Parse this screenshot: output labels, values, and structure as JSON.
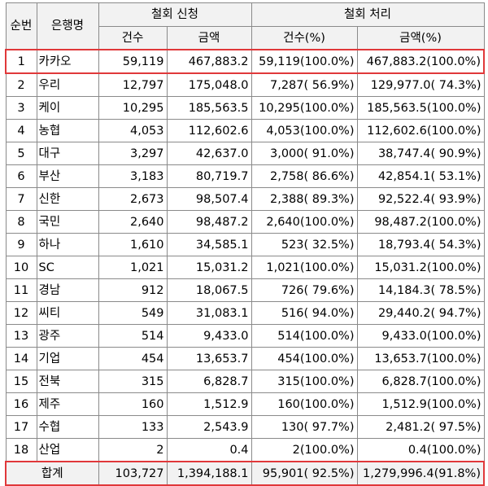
{
  "headers": {
    "rank": "순번",
    "bank": "은행명",
    "request_group": "철회 신청",
    "process_group": "철회 처리",
    "count": "건수",
    "amount": "금액",
    "count_pct": "건수(%)",
    "amount_pct": "금액(%)"
  },
  "rows": [
    {
      "rank": "1",
      "bank": "카카오",
      "req_count": "59,119",
      "req_amount": "467,883.2",
      "proc_count": "59,119(100.0%)",
      "proc_amount": "467,883.2(100.0%)"
    },
    {
      "rank": "2",
      "bank": "우리",
      "req_count": "12,797",
      "req_amount": "175,048.0",
      "proc_count": "7,287( 56.9%)",
      "proc_amount": "129,977.0( 74.3%)"
    },
    {
      "rank": "3",
      "bank": "케이",
      "req_count": "10,295",
      "req_amount": "185,563.5",
      "proc_count": "10,295(100.0%)",
      "proc_amount": "185,563.5(100.0%)"
    },
    {
      "rank": "4",
      "bank": "농협",
      "req_count": "4,053",
      "req_amount": "112,602.6",
      "proc_count": "4,053(100.0%)",
      "proc_amount": "112,602.6(100.0%)"
    },
    {
      "rank": "5",
      "bank": "대구",
      "req_count": "3,297",
      "req_amount": "42,637.0",
      "proc_count": "3,000( 91.0%)",
      "proc_amount": "38,747.4( 90.9%)"
    },
    {
      "rank": "6",
      "bank": "부산",
      "req_count": "3,183",
      "req_amount": "80,719.7",
      "proc_count": "2,758( 86.6%)",
      "proc_amount": "42,854.1( 53.1%)"
    },
    {
      "rank": "7",
      "bank": "신한",
      "req_count": "2,673",
      "req_amount": "98,507.4",
      "proc_count": "2,388( 89.3%)",
      "proc_amount": "92,522.4( 93.9%)"
    },
    {
      "rank": "8",
      "bank": "국민",
      "req_count": "2,640",
      "req_amount": "98,487.2",
      "proc_count": "2,640(100.0%)",
      "proc_amount": "98,487.2(100.0%)"
    },
    {
      "rank": "9",
      "bank": "하나",
      "req_count": "1,610",
      "req_amount": "34,585.1",
      "proc_count": "523( 32.5%)",
      "proc_amount": "18,793.4( 54.3%)"
    },
    {
      "rank": "10",
      "bank": "SC",
      "req_count": "1,021",
      "req_amount": "15,031.2",
      "proc_count": "1,021(100.0%)",
      "proc_amount": "15,031.2(100.0%)"
    },
    {
      "rank": "11",
      "bank": "경남",
      "req_count": "912",
      "req_amount": "18,067.5",
      "proc_count": "726( 79.6%)",
      "proc_amount": "14,184.3( 78.5%)"
    },
    {
      "rank": "12",
      "bank": "씨티",
      "req_count": "549",
      "req_amount": "31,083.1",
      "proc_count": "516( 94.0%)",
      "proc_amount": "29,440.2( 94.7%)"
    },
    {
      "rank": "13",
      "bank": "광주",
      "req_count": "514",
      "req_amount": "9,433.0",
      "proc_count": "514(100.0%)",
      "proc_amount": "9,433.0(100.0%)"
    },
    {
      "rank": "14",
      "bank": "기업",
      "req_count": "454",
      "req_amount": "13,653.7",
      "proc_count": "454(100.0%)",
      "proc_amount": "13,653.7(100.0%)"
    },
    {
      "rank": "15",
      "bank": "전북",
      "req_count": "315",
      "req_amount": "6,828.7",
      "proc_count": "315(100.0%)",
      "proc_amount": "6,828.7(100.0%)"
    },
    {
      "rank": "16",
      "bank": "제주",
      "req_count": "160",
      "req_amount": "1,512.9",
      "proc_count": "160(100.0%)",
      "proc_amount": "1,512.9(100.0%)"
    },
    {
      "rank": "17",
      "bank": "수협",
      "req_count": "133",
      "req_amount": "2,543.9",
      "proc_count": "130( 97.7%)",
      "proc_amount": "2,481.2( 97.5%)"
    },
    {
      "rank": "18",
      "bank": "산업",
      "req_count": "2",
      "req_amount": "0.4",
      "proc_count": "2(100.0%)",
      "proc_amount": "0.4(100.0%)"
    }
  ],
  "total": {
    "label": "합계",
    "req_count": "103,727",
    "req_amount": "1,394,188.1",
    "proc_count": "95,901( 92.5%)",
    "proc_amount": "1,279,996.4(91.8%)"
  },
  "colors": {
    "highlight_border": "#e0383a",
    "header_fill": "#f2f2f2",
    "grid_line": "#8a8a8a"
  }
}
